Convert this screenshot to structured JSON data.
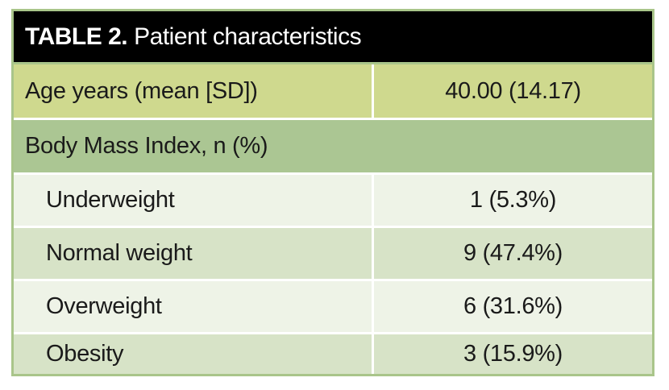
{
  "table": {
    "label": "TABLE 2.",
    "title": "Patient characteristics",
    "rows": [
      {
        "label": "Age years (mean [SD])",
        "value": "40.00 (14.17)"
      },
      {
        "label": "Body Mass Index, n (%)",
        "value": ""
      },
      {
        "label": "Underweight",
        "value": "1 (5.3%)"
      },
      {
        "label": "Normal weight",
        "value": "9 (47.4%)"
      },
      {
        "label": "Overweight",
        "value": "6 (31.6%)"
      },
      {
        "label": "Obesity",
        "value": "3 (15.9%)"
      }
    ]
  },
  "colors": {
    "title_background": "#000000",
    "header_row": "#cfd98e",
    "section_row": "#abc693",
    "alt_row_light": "#eef3e7",
    "alt_row_dark": "#d7e3c7",
    "border": "#a9c58a"
  }
}
